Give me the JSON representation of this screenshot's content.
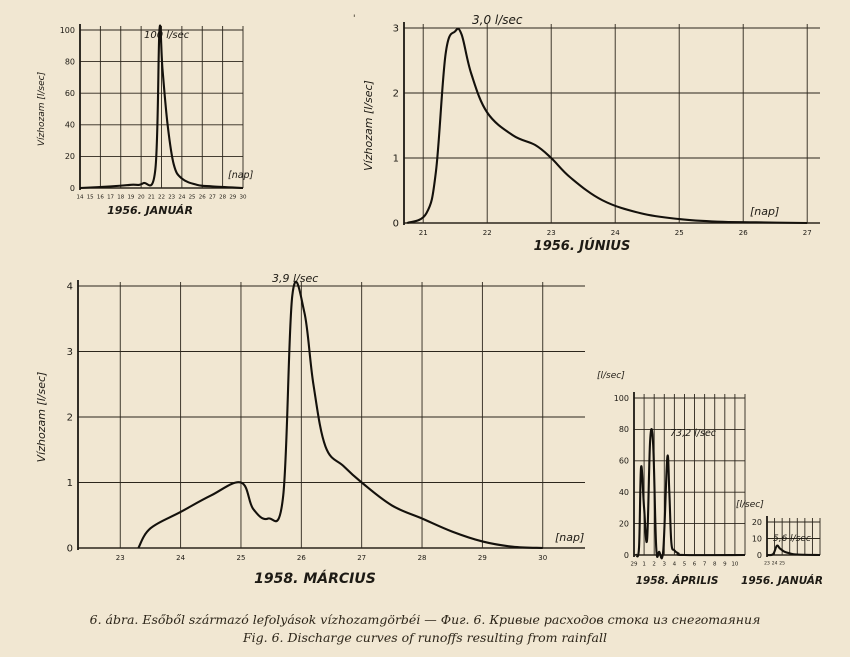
{
  "caption": {
    "line1": "6. ábra. Esőből származó lefolyások vízhozamgörbéi — Фиг. 6. Кривые расходов стока из снеготаяния",
    "line2": "Fig. 6. Discharge curves of runoffs resulting from rainfall"
  },
  "chart_data": [
    {
      "id": "jan1956",
      "type": "line",
      "title": "1956. JANUÁR",
      "ylabel": "Vízhozam [l/sec]",
      "xlabel": "[nap]",
      "ylim": [
        0,
        100
      ],
      "yticks": [
        0,
        20,
        40,
        60,
        80,
        100
      ],
      "xlim": [
        0,
        16
      ],
      "xticks": [
        0,
        1,
        2,
        3,
        4,
        5,
        6,
        7,
        8,
        9,
        10,
        11,
        12,
        13,
        14,
        15,
        16
      ],
      "xticklabels": [
        "14",
        "15",
        "16",
        "17",
        "18",
        "19",
        "20",
        "21",
        "22",
        "23",
        "24",
        "25",
        "26",
        "27",
        "28",
        "29",
        "30"
      ],
      "annotation": "100 l/sec",
      "grid": true,
      "x": [
        0,
        3,
        5,
        6.2,
        7.4,
        7.8,
        8.1,
        8.6,
        9.2,
        10,
        11.5,
        13,
        16
      ],
      "y": [
        0,
        1,
        2,
        3,
        12,
        100,
        75,
        40,
        15,
        6,
        2,
        1,
        0
      ]
    },
    {
      "id": "jun1956",
      "type": "line",
      "title": "1956. JÚNIUS",
      "ylabel": "Vízhozam [l/sec]",
      "xlabel": "[nap]",
      "ylim": [
        0,
        3
      ],
      "yticks": [
        0,
        1,
        2,
        3
      ],
      "xlim": [
        20.7,
        27.2
      ],
      "xticks": [
        21,
        22,
        23,
        24,
        25,
        26,
        27
      ],
      "xticklabels": [
        "21",
        "22",
        "23",
        "24",
        "25",
        "26",
        "27"
      ],
      "annotation": "3,0 l/sec",
      "grid": true,
      "x": [
        20.75,
        21.05,
        21.2,
        21.35,
        21.5,
        21.6,
        21.75,
        22.0,
        22.4,
        22.75,
        23.0,
        23.3,
        23.8,
        24.4,
        25.0,
        25.6,
        26.2,
        27.0
      ],
      "y": [
        0,
        0.15,
        0.8,
        2.6,
        2.95,
        2.9,
        2.3,
        1.7,
        1.35,
        1.2,
        1.0,
        0.7,
        0.35,
        0.15,
        0.06,
        0.02,
        0.01,
        0
      ]
    },
    {
      "id": "mar1958",
      "type": "line",
      "title": "1958. MÁRCIUS",
      "ylabel": "Vízhozam [l/sec]",
      "xlabel": "[nap]",
      "ylim": [
        0,
        4
      ],
      "yticks": [
        0,
        1,
        2,
        3,
        4
      ],
      "xlim": [
        22.3,
        30.7
      ],
      "xticks": [
        23,
        24,
        25,
        26,
        27,
        28,
        29,
        30
      ],
      "xticklabels": [
        "23",
        "24",
        "25",
        "26",
        "27",
        "28",
        "29",
        "30"
      ],
      "annotation": "3,9 l/sec",
      "grid": true,
      "x": [
        23.3,
        23.5,
        24.0,
        24.5,
        25.0,
        25.2,
        25.45,
        25.7,
        25.85,
        26.05,
        26.2,
        26.4,
        26.7,
        27.0,
        27.5,
        28.0,
        28.5,
        29.0,
        29.5,
        30.0
      ],
      "y": [
        0,
        0.3,
        0.55,
        0.8,
        1.0,
        0.6,
        0.45,
        0.8,
        3.85,
        3.6,
        2.5,
        1.55,
        1.25,
        1.0,
        0.65,
        0.45,
        0.25,
        0.1,
        0.02,
        0
      ]
    },
    {
      "id": "apr1958",
      "type": "line",
      "title": "1958. ÁPRILIS",
      "ylabel": "[l/sec]",
      "ylim": [
        0,
        100
      ],
      "yticks": [
        0,
        20,
        40,
        60,
        80,
        100
      ],
      "xlim": [
        0,
        11
      ],
      "xticks": [
        0,
        1,
        2,
        3,
        4,
        5,
        6,
        7,
        8,
        9,
        10,
        11
      ],
      "xticklabels": [
        "29",
        "1",
        "2",
        "3",
        "4",
        "5",
        "6",
        "7",
        "8",
        "9",
        "10",
        ""
      ],
      "annotation": "73,2 l/sec",
      "grid": true,
      "x": [
        0.2,
        0.5,
        0.7,
        1.0,
        1.3,
        1.6,
        1.9,
        2.2,
        2.5,
        2.9,
        3.3,
        3.5,
        3.7,
        4.0,
        4.4,
        5.0,
        11
      ],
      "y": [
        0,
        5,
        56,
        30,
        10,
        73,
        70,
        5,
        2,
        3,
        62,
        40,
        8,
        3,
        1,
        0,
        0
      ]
    },
    {
      "id": "jan1956b",
      "type": "line",
      "title": "1956. JANUÁR",
      "ylabel": "[l/sec]",
      "ylim": [
        0,
        20
      ],
      "yticks": [
        0,
        10,
        20
      ],
      "xlim": [
        0,
        7
      ],
      "xticks": [
        0,
        1,
        2,
        3,
        4,
        5,
        6,
        7
      ],
      "xticklabels": [
        "23",
        "24",
        "25",
        "",
        "",
        "",
        "",
        ""
      ],
      "annotation": "5,6 l/sec",
      "grid": true,
      "x": [
        0,
        0.8,
        1.3,
        1.7,
        2.3,
        3.0,
        4.0,
        7
      ],
      "y": [
        0,
        0.5,
        5.6,
        4.0,
        2.0,
        1.0,
        0.3,
        0
      ]
    }
  ]
}
